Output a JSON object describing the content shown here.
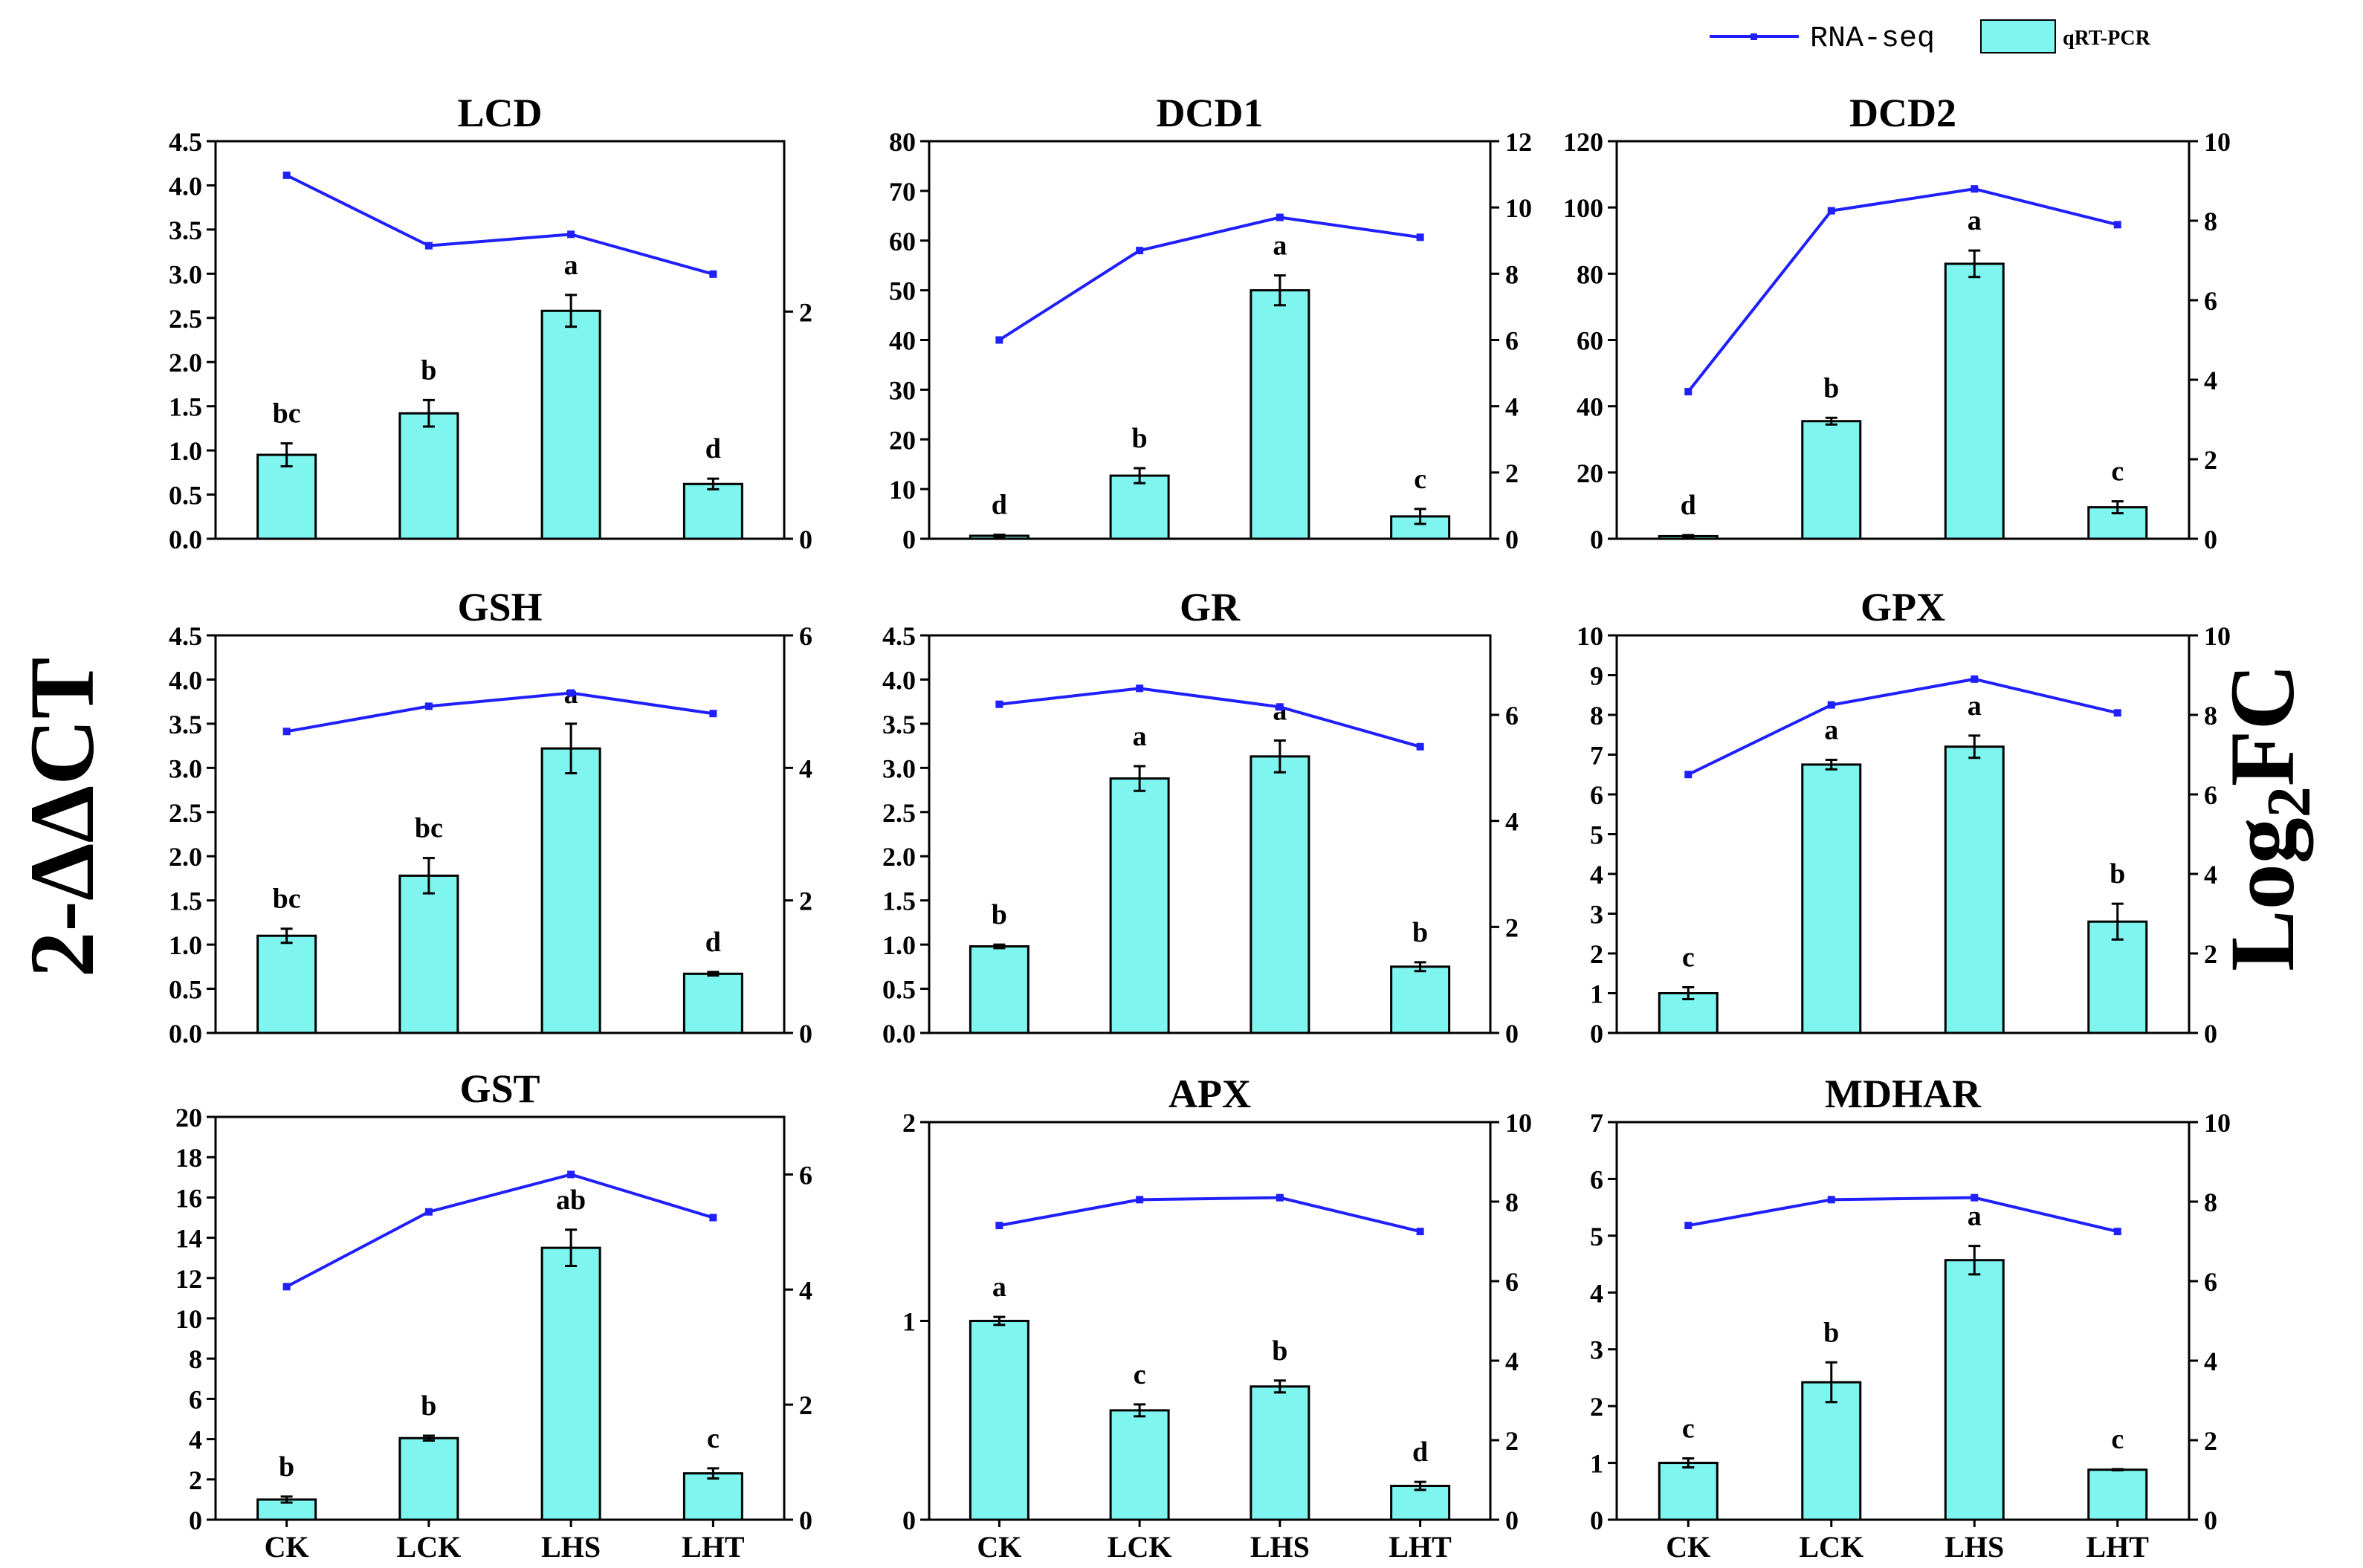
{
  "colors": {
    "bar_fill": "#7ff5f0",
    "line": "#1f1fff",
    "axis": "#000000"
  },
  "legend": {
    "line_label": "RNA-seq",
    "bar_label": "qRT-PCR"
  },
  "ylabels": {
    "left": {
      "main": "2-ΔΔCT"
    },
    "right": {
      "main": "Log",
      "sub": "2",
      "tail": "FC"
    }
  },
  "chart_data": [
    {
      "title": "LCD",
      "type": "bar",
      "categories": [
        "CK",
        "LCK",
        "LHS",
        "LHT"
      ],
      "series": [
        {
          "name": "qRT-PCR",
          "values": [
            0.95,
            1.42,
            2.58,
            0.62
          ],
          "errors": [
            0.13,
            0.15,
            0.18,
            0.06
          ],
          "labels": [
            "bc",
            "b",
            "a",
            "d"
          ]
        },
        {
          "name": "RNA-seq",
          "values": [
            3.2,
            2.58,
            2.68,
            2.33
          ]
        }
      ],
      "ylim": [
        0,
        4.5
      ],
      "yticks": [
        "0.0",
        "0.5",
        "1.0",
        "1.5",
        "2.0",
        "2.5",
        "3.0",
        "3.5",
        "4.0",
        "4.5"
      ],
      "y2lim": [
        0,
        3.5
      ],
      "y2ticks": [
        "0",
        "2"
      ],
      "y2tick_values": [
        0,
        2
      ],
      "show_xlabels": false
    },
    {
      "title": "DCD1",
      "type": "bar",
      "categories": [
        "CK",
        "LCK",
        "LHS",
        "LHT"
      ],
      "series": [
        {
          "name": "qRT-PCR",
          "values": [
            0.6,
            12.7,
            50,
            4.5
          ],
          "errors": [
            0.2,
            1.5,
            3,
            1.5
          ],
          "labels": [
            "d",
            "b",
            "a",
            "c"
          ]
        },
        {
          "name": "RNA-seq",
          "values": [
            6.0,
            8.7,
            9.7,
            9.1
          ]
        }
      ],
      "ylim": [
        0,
        80
      ],
      "yticks": [
        "0",
        "10",
        "20",
        "30",
        "40",
        "50",
        "60",
        "70",
        "80"
      ],
      "y2lim": [
        0,
        12
      ],
      "y2ticks": [
        "0",
        "2",
        "4",
        "6",
        "8",
        "10",
        "12"
      ],
      "y2tick_values": [
        0,
        2,
        4,
        6,
        8,
        10,
        12
      ],
      "show_xlabels": false
    },
    {
      "title": "DCD2",
      "type": "bar",
      "categories": [
        "CK",
        "LCK",
        "LHS",
        "LHT"
      ],
      "series": [
        {
          "name": "qRT-PCR",
          "values": [
            0.8,
            35.5,
            83,
            9.5
          ],
          "errors": [
            0.3,
            1,
            4,
            1.8
          ],
          "labels": [
            "d",
            "b",
            "a",
            "c"
          ]
        },
        {
          "name": "RNA-seq",
          "values": [
            3.7,
            8.25,
            8.8,
            7.9
          ]
        }
      ],
      "ylim": [
        0,
        120
      ],
      "yticks": [
        "0",
        "20",
        "40",
        "60",
        "80",
        "100",
        "120"
      ],
      "y2lim": [
        0,
        10
      ],
      "y2ticks": [
        "0",
        "2",
        "4",
        "6",
        "8",
        "10"
      ],
      "y2tick_values": [
        0,
        2,
        4,
        6,
        8,
        10
      ],
      "show_xlabels": false
    },
    {
      "title": "GSH",
      "type": "bar",
      "categories": [
        "CK",
        "LCK",
        "LHS",
        "LHT"
      ],
      "series": [
        {
          "name": "qRT-PCR",
          "values": [
            1.1,
            1.78,
            3.22,
            0.67
          ],
          "errors": [
            0.08,
            0.2,
            0.28,
            0.02
          ],
          "labels": [
            "bc",
            "bc",
            "a",
            "d"
          ]
        },
        {
          "name": "RNA-seq",
          "values": [
            4.55,
            4.93,
            5.13,
            4.82
          ]
        }
      ],
      "ylim": [
        0,
        4.5
      ],
      "yticks": [
        "0.0",
        "0.5",
        "1.0",
        "1.5",
        "2.0",
        "2.5",
        "3.0",
        "3.5",
        "4.0",
        "4.5"
      ],
      "y2lim": [
        0,
        6
      ],
      "y2ticks": [
        "0",
        "2",
        "4",
        "6"
      ],
      "y2tick_values": [
        0,
        2,
        4,
        6
      ],
      "show_xlabels": false
    },
    {
      "title": "GR",
      "type": "bar",
      "categories": [
        "CK",
        "LCK",
        "LHS",
        "LHT"
      ],
      "series": [
        {
          "name": "qRT-PCR",
          "values": [
            0.98,
            2.88,
            3.13,
            0.75
          ],
          "errors": [
            0.02,
            0.14,
            0.18,
            0.05
          ],
          "labels": [
            "b",
            "a",
            "a",
            "b"
          ]
        },
        {
          "name": "RNA-seq",
          "values": [
            6.2,
            6.5,
            6.15,
            5.4
          ]
        }
      ],
      "ylim": [
        0,
        4.5
      ],
      "yticks": [
        "0.0",
        "0.5",
        "1.0",
        "1.5",
        "2.0",
        "2.5",
        "3.0",
        "3.5",
        "4.0",
        "4.5"
      ],
      "y2lim": [
        0,
        7.5
      ],
      "y2ticks": [
        "0",
        "2",
        "4",
        "6"
      ],
      "y2tick_values": [
        0,
        2,
        4,
        6
      ],
      "show_xlabels": false
    },
    {
      "title": "GPX",
      "type": "bar",
      "categories": [
        "CK",
        "LCK",
        "LHS",
        "LHT"
      ],
      "series": [
        {
          "name": "qRT-PCR",
          "values": [
            1.0,
            6.75,
            7.2,
            2.8
          ],
          "errors": [
            0.15,
            0.12,
            0.28,
            0.45
          ],
          "labels": [
            "c",
            "a",
            "a",
            "b"
          ]
        },
        {
          "name": "RNA-seq",
          "values": [
            6.5,
            8.25,
            8.9,
            8.05
          ]
        }
      ],
      "ylim": [
        0,
        10
      ],
      "yticks": [
        "0",
        "1",
        "2",
        "3",
        "4",
        "5",
        "6",
        "7",
        "8",
        "9",
        "10"
      ],
      "y2lim": [
        0,
        10
      ],
      "y2ticks": [
        "0",
        "2",
        "4",
        "6",
        "8",
        "10"
      ],
      "y2tick_values": [
        0,
        2,
        4,
        6,
        8,
        10
      ],
      "show_xlabels": false
    },
    {
      "title": "GST",
      "type": "bar",
      "categories": [
        "CK",
        "LCK",
        "LHS",
        "LHT"
      ],
      "series": [
        {
          "name": "qRT-PCR",
          "values": [
            1.0,
            4.05,
            13.5,
            2.3
          ],
          "errors": [
            0.15,
            0.12,
            0.9,
            0.25
          ],
          "labels": [
            "b",
            "b",
            "ab",
            "c"
          ]
        },
        {
          "name": "RNA-seq",
          "values": [
            4.05,
            5.35,
            6.0,
            5.25
          ]
        }
      ],
      "ylim": [
        0,
        20
      ],
      "yticks": [
        "0",
        "2",
        "4",
        "6",
        "8",
        "10",
        "12",
        "14",
        "16",
        "18",
        "20"
      ],
      "y2lim": [
        0,
        7
      ],
      "y2ticks": [
        "0",
        "2",
        "4",
        "6"
      ],
      "y2tick_values": [
        0,
        2,
        4,
        6
      ],
      "show_xlabels": true
    },
    {
      "title": "APX",
      "type": "bar",
      "categories": [
        "CK",
        "LCK",
        "LHS",
        "LHT"
      ],
      "series": [
        {
          "name": "qRT-PCR",
          "values": [
            1.0,
            0.55,
            0.67,
            0.17
          ],
          "errors": [
            0.02,
            0.03,
            0.03,
            0.02
          ],
          "labels": [
            "a",
            "c",
            "b",
            "d"
          ]
        },
        {
          "name": "RNA-seq",
          "values": [
            7.4,
            8.05,
            8.1,
            7.25
          ]
        }
      ],
      "ylim": [
        0,
        2
      ],
      "yticks": [
        "0",
        "1",
        "2"
      ],
      "y2lim": [
        0,
        10
      ],
      "y2ticks": [
        "0",
        "2",
        "4",
        "6",
        "8",
        "10"
      ],
      "y2tick_values": [
        0,
        2,
        4,
        6,
        8,
        10
      ],
      "show_xlabels": true
    },
    {
      "title": "MDHAR",
      "type": "bar",
      "categories": [
        "CK",
        "LCK",
        "LHS",
        "LHT"
      ],
      "series": [
        {
          "name": "qRT-PCR",
          "values": [
            1.0,
            2.42,
            4.57,
            0.88
          ],
          "errors": [
            0.08,
            0.35,
            0.25,
            0.01
          ],
          "labels": [
            "c",
            "b",
            "a",
            "c"
          ]
        },
        {
          "name": "RNA-seq",
          "values": [
            7.4,
            8.05,
            8.1,
            7.25
          ]
        }
      ],
      "ylim": [
        0,
        7
      ],
      "yticks": [
        "0",
        "1",
        "2",
        "3",
        "4",
        "5",
        "6",
        "7"
      ],
      "y2lim": [
        0,
        10
      ],
      "y2ticks": [
        "0",
        "2",
        "4",
        "6",
        "8",
        "10"
      ],
      "y2tick_values": [
        0,
        2,
        4,
        6,
        8,
        10
      ],
      "show_xlabels": true
    }
  ]
}
